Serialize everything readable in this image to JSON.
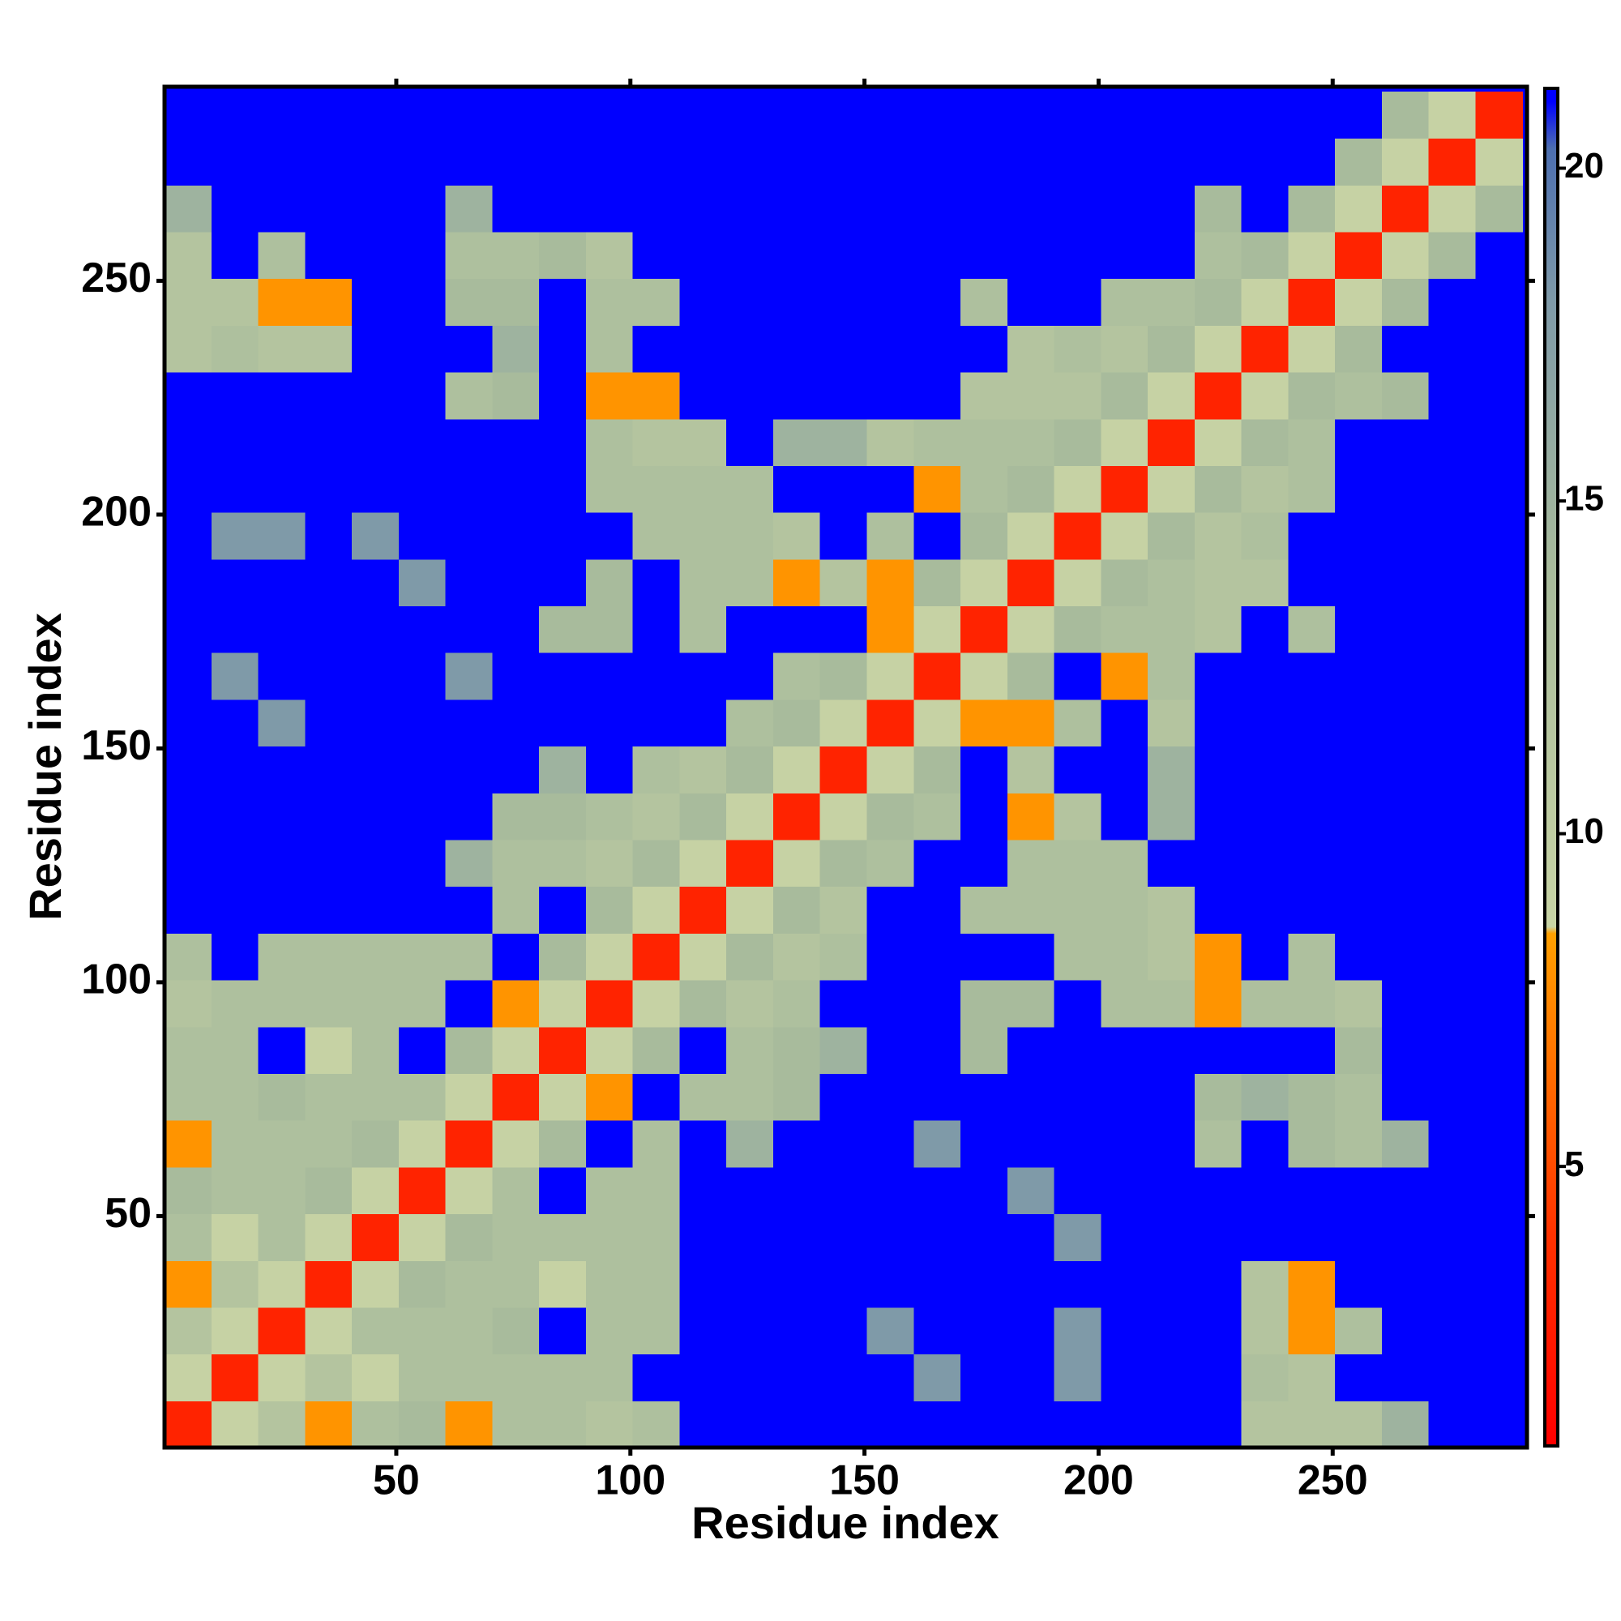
{
  "chart_data": {
    "type": "heatmap",
    "x_label": "Residue index",
    "y_label": "Residue index",
    "xlim": [
      0.5,
      291.5
    ],
    "ylim": [
      0.5,
      291.5
    ],
    "xticks": [
      50,
      100,
      150,
      200,
      250
    ],
    "yticks": [
      50,
      100,
      150,
      200,
      250
    ],
    "bins": [
      0.5,
      10.5,
      20.5,
      30.5,
      40.5,
      50.5,
      60.5,
      70.5,
      80.5,
      90.5,
      100.5,
      110.5,
      120.5,
      130.5,
      140.5,
      150.5,
      160.5,
      170.5,
      180.5,
      190.5,
      200.5,
      210.5,
      220.5,
      230.5,
      240.5,
      250.5,
      260.5,
      270.5,
      280.5,
      290.5
    ],
    "z": [
      [
        3,
        9,
        12,
        8,
        13,
        14,
        8,
        13,
        13,
        12,
        13,
        21,
        21,
        21,
        21,
        21,
        21,
        21,
        21,
        21,
        21,
        21,
        21,
        12,
        12,
        12,
        15,
        21,
        21
      ],
      [
        9,
        3,
        9,
        12,
        9,
        13,
        13,
        13,
        13,
        13,
        21,
        21,
        21,
        21,
        21,
        21,
        18,
        21,
        21,
        18,
        21,
        21,
        21,
        13,
        12,
        21,
        21,
        21,
        21
      ],
      [
        12,
        9,
        3,
        9,
        13,
        13,
        13,
        14,
        21,
        13,
        13,
        21,
        21,
        21,
        21,
        18,
        21,
        21,
        21,
        18,
        21,
        21,
        21,
        12,
        8,
        13,
        21,
        21,
        21
      ],
      [
        8,
        12,
        9,
        3,
        9,
        14,
        13,
        13,
        9,
        13,
        13,
        21,
        21,
        21,
        21,
        21,
        21,
        21,
        21,
        21,
        21,
        21,
        21,
        12,
        8,
        21,
        21,
        21,
        21
      ],
      [
        13,
        9,
        13,
        9,
        3,
        9,
        14,
        13,
        13,
        13,
        13,
        21,
        21,
        21,
        21,
        21,
        21,
        21,
        21,
        18,
        21,
        21,
        21,
        21,
        21,
        21,
        21,
        21,
        21
      ],
      [
        14,
        13,
        13,
        14,
        9,
        3,
        9,
        13,
        21,
        13,
        13,
        21,
        21,
        21,
        21,
        21,
        21,
        21,
        18,
        21,
        21,
        21,
        21,
        21,
        21,
        21,
        21,
        21,
        21
      ],
      [
        8,
        13,
        13,
        13,
        14,
        9,
        3,
        9,
        14,
        21,
        13,
        21,
        15,
        21,
        21,
        21,
        18,
        21,
        21,
        21,
        21,
        21,
        13,
        21,
        14,
        13,
        15,
        21,
        21
      ],
      [
        13,
        13,
        14,
        13,
        13,
        13,
        9,
        3,
        9,
        8,
        21,
        13,
        13,
        14,
        21,
        21,
        21,
        21,
        21,
        21,
        21,
        21,
        14,
        15,
        14,
        13,
        21,
        21,
        21
      ],
      [
        13,
        13,
        21,
        9,
        13,
        21,
        14,
        9,
        3,
        9,
        14,
        21,
        13,
        14,
        15,
        21,
        21,
        14,
        21,
        21,
        21,
        21,
        21,
        21,
        21,
        14,
        21,
        21,
        21
      ],
      [
        12,
        13,
        13,
        13,
        13,
        13,
        21,
        8,
        9,
        3,
        9,
        14,
        12,
        13,
        21,
        21,
        21,
        14,
        14,
        21,
        13,
        13,
        8,
        13,
        13,
        12,
        21,
        21,
        21
      ],
      [
        13,
        21,
        13,
        13,
        13,
        13,
        13,
        21,
        14,
        9,
        3,
        9,
        14,
        12,
        13,
        21,
        21,
        21,
        21,
        13,
        13,
        12,
        8,
        21,
        13,
        21,
        21,
        21,
        21
      ],
      [
        21,
        21,
        21,
        21,
        21,
        21,
        21,
        13,
        21,
        14,
        9,
        3,
        9,
        14,
        12,
        21,
        21,
        13,
        13,
        13,
        13,
        12,
        21,
        21,
        21,
        21,
        21,
        21,
        21
      ],
      [
        21,
        21,
        21,
        21,
        21,
        21,
        15,
        13,
        13,
        12,
        14,
        9,
        3,
        9,
        14,
        13,
        21,
        21,
        13,
        13,
        13,
        21,
        21,
        21,
        21,
        21,
        21,
        21,
        21
      ],
      [
        21,
        21,
        21,
        21,
        21,
        21,
        21,
        14,
        14,
        13,
        12,
        14,
        9,
        3,
        9,
        14,
        13,
        21,
        8,
        12,
        21,
        15,
        21,
        21,
        21,
        21,
        21,
        21,
        21
      ],
      [
        21,
        21,
        21,
        21,
        21,
        21,
        21,
        21,
        15,
        21,
        13,
        12,
        14,
        9,
        3,
        9,
        14,
        21,
        12,
        21,
        21,
        15,
        21,
        21,
        21,
        21,
        21,
        21,
        21
      ],
      [
        21,
        21,
        18,
        21,
        21,
        21,
        21,
        21,
        21,
        21,
        21,
        21,
        13,
        14,
        9,
        3,
        9,
        8,
        8,
        13,
        21,
        12,
        21,
        21,
        21,
        21,
        21,
        21,
        21
      ],
      [
        21,
        18,
        21,
        21,
        21,
        21,
        18,
        21,
        21,
        21,
        21,
        21,
        21,
        13,
        14,
        9,
        3,
        9,
        14,
        21,
        8,
        13,
        21,
        21,
        21,
        21,
        21,
        21,
        21
      ],
      [
        21,
        21,
        21,
        21,
        21,
        21,
        21,
        21,
        14,
        14,
        21,
        13,
        21,
        21,
        21,
        8,
        9,
        3,
        9,
        14,
        13,
        13,
        12,
        21,
        13,
        21,
        21,
        21,
        21
      ],
      [
        21,
        21,
        21,
        21,
        21,
        18,
        21,
        21,
        21,
        14,
        21,
        13,
        13,
        8,
        12,
        8,
        14,
        9,
        3,
        9,
        14,
        13,
        12,
        12,
        21,
        21,
        21,
        21,
        21
      ],
      [
        21,
        18,
        18,
        21,
        18,
        21,
        21,
        21,
        21,
        21,
        13,
        13,
        13,
        12,
        21,
        13,
        21,
        14,
        9,
        3,
        9,
        14,
        12,
        13,
        21,
        21,
        21,
        21,
        21
      ],
      [
        21,
        21,
        21,
        21,
        21,
        21,
        21,
        21,
        21,
        13,
        13,
        13,
        13,
        21,
        21,
        21,
        8,
        13,
        14,
        9,
        3,
        9,
        14,
        12,
        13,
        21,
        21,
        21,
        21
      ],
      [
        21,
        21,
        21,
        21,
        21,
        21,
        21,
        21,
        21,
        13,
        12,
        12,
        21,
        15,
        15,
        12,
        13,
        13,
        13,
        14,
        9,
        3,
        9,
        14,
        13,
        21,
        21,
        21,
        21
      ],
      [
        21,
        21,
        21,
        21,
        21,
        21,
        13,
        14,
        21,
        8,
        8,
        21,
        21,
        21,
        21,
        21,
        21,
        12,
        12,
        12,
        14,
        9,
        3,
        9,
        14,
        13,
        14,
        21,
        21
      ],
      [
        12,
        13,
        12,
        12,
        21,
        21,
        21,
        15,
        21,
        13,
        21,
        21,
        21,
        21,
        21,
        21,
        21,
        21,
        12,
        13,
        12,
        14,
        9,
        3,
        9,
        14,
        21,
        21,
        21
      ],
      [
        12,
        12,
        8,
        8,
        21,
        21,
        14,
        14,
        21,
        13,
        13,
        21,
        21,
        21,
        21,
        21,
        21,
        13,
        21,
        21,
        13,
        13,
        14,
        9,
        3,
        9,
        14,
        21,
        21
      ],
      [
        12,
        21,
        13,
        21,
        21,
        21,
        13,
        13,
        14,
        12,
        21,
        21,
        21,
        21,
        21,
        21,
        21,
        21,
        21,
        21,
        21,
        21,
        13,
        14,
        9,
        3,
        9,
        14,
        21
      ],
      [
        15,
        21,
        21,
        21,
        21,
        21,
        15,
        21,
        21,
        21,
        21,
        21,
        21,
        21,
        21,
        21,
        21,
        21,
        21,
        21,
        21,
        21,
        14,
        21,
        14,
        9,
        3,
        9,
        14
      ],
      [
        21,
        21,
        21,
        21,
        21,
        21,
        21,
        21,
        21,
        21,
        21,
        21,
        21,
        21,
        21,
        21,
        21,
        21,
        21,
        21,
        21,
        21,
        21,
        21,
        21,
        14,
        9,
        3,
        9
      ],
      [
        21,
        21,
        21,
        21,
        21,
        21,
        21,
        21,
        21,
        21,
        21,
        21,
        21,
        21,
        21,
        21,
        21,
        21,
        21,
        21,
        21,
        21,
        21,
        21,
        21,
        21,
        14,
        9,
        3
      ]
    ],
    "colorbar": {
      "lim": [
        0.8,
        21.2
      ],
      "ticks": [
        5,
        10,
        15,
        20
      ]
    },
    "colorscale": [
      {
        "value": 0.8,
        "color": "#ff0000"
      },
      {
        "value": 4,
        "color": "#ff3300"
      },
      {
        "value": 8.5,
        "color": "#ffa000"
      },
      {
        "value": 8.6,
        "color": "#c8d4a5"
      },
      {
        "value": 14,
        "color": "#a8bb9c"
      },
      {
        "value": 18,
        "color": "#7f9aa8"
      },
      {
        "value": 20.3,
        "color": "#4d6fb0"
      },
      {
        "value": 21,
        "color": "#0000ff"
      }
    ]
  }
}
